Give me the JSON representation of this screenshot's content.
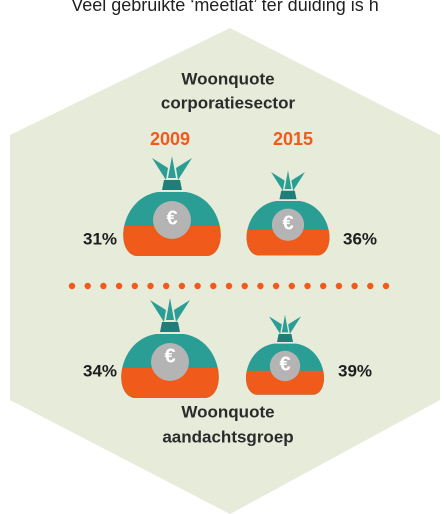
{
  "caption": "Veel gebruikte ‘meetlat’ ter duiding is h",
  "top": {
    "title_lines": [
      "Woonquote",
      "corporatiesector"
    ],
    "years": [
      "2009",
      "2015"
    ],
    "values": [
      "31%",
      "36%"
    ]
  },
  "bottom": {
    "values": [
      "34%",
      "39%"
    ],
    "title_lines": [
      "Woonquote",
      "aandachtsgroep"
    ]
  },
  "currency_symbol": "€"
}
